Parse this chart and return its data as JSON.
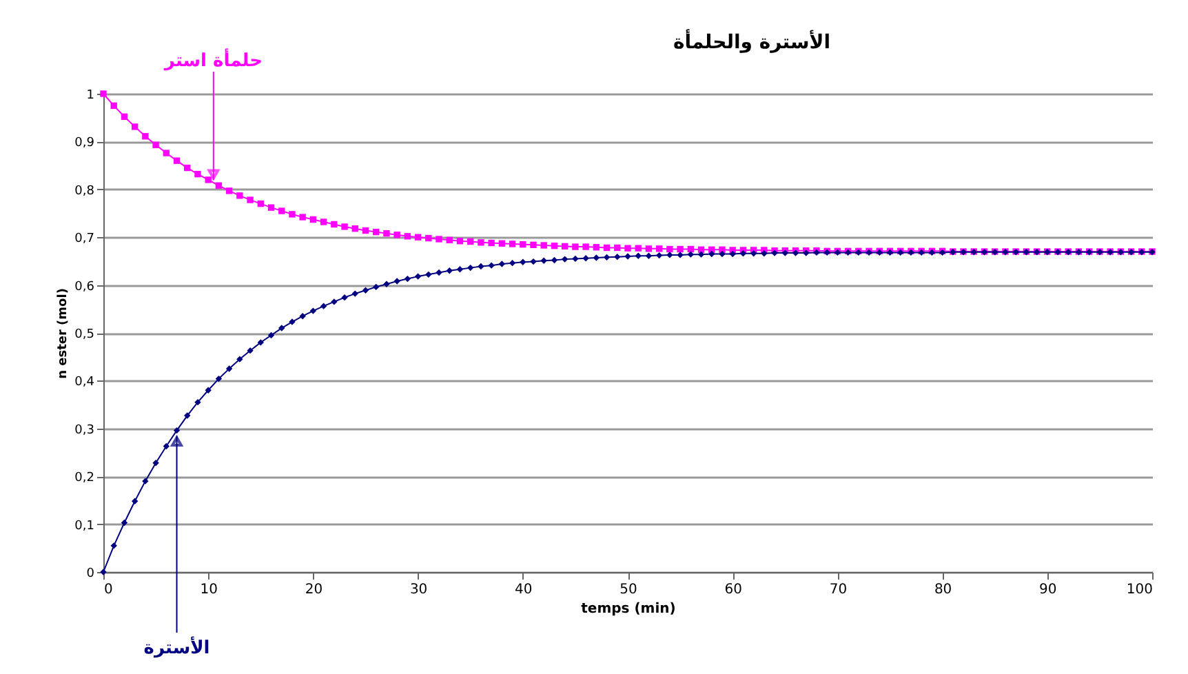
{
  "chart_data": {
    "type": "line",
    "title": "الأسترة والحلمأة",
    "xlabel": "temps (min)",
    "ylabel": "n ester (mol)",
    "x": [
      0,
      1,
      2,
      3,
      4,
      5,
      6,
      7,
      8,
      9,
      10,
      11,
      12,
      13,
      14,
      15,
      16,
      17,
      18,
      19,
      20,
      21,
      22,
      23,
      24,
      25,
      26,
      27,
      28,
      29,
      30,
      31,
      32,
      33,
      34,
      35,
      36,
      37,
      38,
      39,
      40,
      41,
      42,
      43,
      44,
      45,
      46,
      47,
      48,
      49,
      50,
      51,
      52,
      53,
      54,
      55,
      56,
      57,
      58,
      59,
      60,
      61,
      62,
      63,
      64,
      65,
      66,
      67,
      68,
      69,
      70,
      71,
      72,
      73,
      74,
      75,
      76,
      77,
      78,
      79,
      80,
      81,
      82,
      83,
      84,
      85,
      86,
      87,
      88,
      89,
      90,
      91,
      92,
      93,
      94,
      95,
      96,
      97,
      98,
      99,
      100
    ],
    "series": [
      {
        "color": "#ff00ff",
        "marker": "square",
        "values": [
          1,
          0.975,
          0.952,
          0.931,
          0.911,
          0.893,
          0.876,
          0.86,
          0.845,
          0.832,
          0.82,
          0.808,
          0.797,
          0.787,
          0.778,
          0.77,
          0.762,
          0.755,
          0.748,
          0.742,
          0.737,
          0.732,
          0.727,
          0.722,
          0.718,
          0.714,
          0.711,
          0.708,
          0.705,
          0.702,
          0.7,
          0.698,
          0.696,
          0.694,
          0.692,
          0.691,
          0.689,
          0.688,
          0.687,
          0.686,
          0.685,
          0.684,
          0.683,
          0.682,
          0.681,
          0.68,
          0.68,
          0.679,
          0.678,
          0.678,
          0.677,
          0.677,
          0.676,
          0.676,
          0.675,
          0.675,
          0.675,
          0.674,
          0.674,
          0.674,
          0.673,
          0.673,
          0.673,
          0.673,
          0.672,
          0.672,
          0.672,
          0.672,
          0.672,
          0.671,
          0.671,
          0.671,
          0.671,
          0.671,
          0.671,
          0.671,
          0.671,
          0.671,
          0.671,
          0.671,
          0.671,
          0.67,
          0.67,
          0.67,
          0.67,
          0.67,
          0.67,
          0.67,
          0.67,
          0.67,
          0.67,
          0.67,
          0.67,
          0.67,
          0.67,
          0.67,
          0.67,
          0.67,
          0.67,
          0.67,
          0.67
        ]
      },
      {
        "color": "#000080",
        "marker": "diamond",
        "values": [
          0,
          0.055,
          0.103,
          0.148,
          0.19,
          0.228,
          0.263,
          0.296,
          0.327,
          0.355,
          0.38,
          0.404,
          0.425,
          0.445,
          0.463,
          0.48,
          0.495,
          0.51,
          0.523,
          0.535,
          0.546,
          0.556,
          0.565,
          0.574,
          0.582,
          0.589,
          0.596,
          0.602,
          0.608,
          0.613,
          0.618,
          0.622,
          0.626,
          0.63,
          0.633,
          0.636,
          0.639,
          0.641,
          0.644,
          0.646,
          0.648,
          0.649,
          0.651,
          0.652,
          0.654,
          0.655,
          0.656,
          0.657,
          0.658,
          0.659,
          0.66,
          0.661,
          0.661,
          0.662,
          0.663,
          0.663,
          0.664,
          0.664,
          0.665,
          0.665,
          0.665,
          0.666,
          0.666,
          0.666,
          0.667,
          0.667,
          0.667,
          0.667,
          0.668,
          0.668,
          0.668,
          0.668,
          0.668,
          0.668,
          0.668,
          0.668,
          0.668,
          0.668,
          0.668,
          0.668,
          0.668,
          0.669,
          0.669,
          0.669,
          0.669,
          0.669,
          0.669,
          0.669,
          0.669,
          0.669,
          0.669,
          0.669,
          0.669,
          0.669,
          0.669,
          0.669,
          0.669,
          0.669,
          0.669,
          0.669,
          0.669
        ]
      }
    ],
    "xlim": [
      0,
      100
    ],
    "xticks": [
      0,
      10,
      20,
      30,
      40,
      50,
      60,
      70,
      80,
      90,
      100
    ],
    "ylim": [
      0,
      1
    ],
    "yticks": [
      0,
      {
        "value": 0.1,
        "label": "0,1"
      },
      {
        "value": 0.2,
        "label": "0,2"
      },
      {
        "value": 0.3,
        "label": "0,3"
      },
      {
        "value": 0.4,
        "label": "0,4"
      },
      {
        "value": 0.5,
        "label": "0,5"
      },
      {
        "value": 0.6,
        "label": "0,6"
      },
      {
        "value": 0.7,
        "label": "0,7"
      },
      {
        "value": 0.8,
        "label": "0,8"
      },
      {
        "value": 0.9,
        "label": "0,9"
      },
      1
    ],
    "grid": "y",
    "line_style": "solid",
    "annotations": [
      {
        "text": "حلمأة استر",
        "x": 10.5,
        "y": 0.82
      },
      {
        "text": "الأسترة",
        "x": 7,
        "y": 0.296
      }
    ]
  }
}
